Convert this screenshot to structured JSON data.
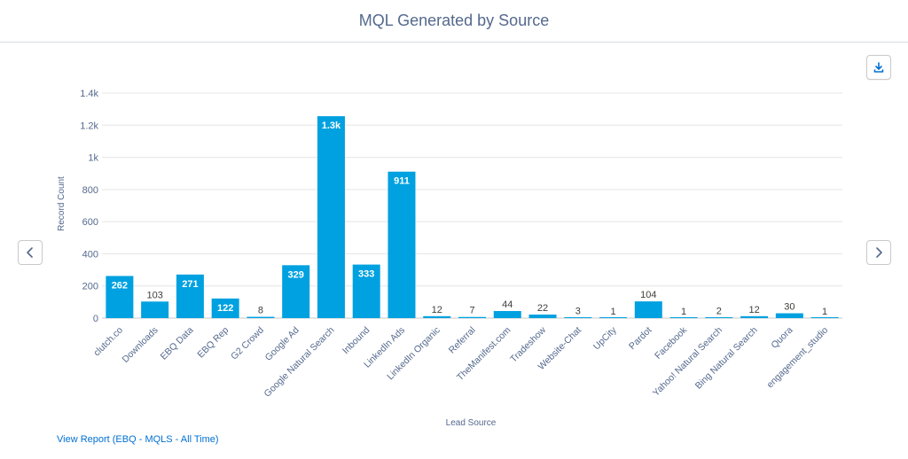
{
  "header": {
    "title": "MQL Generated by Source"
  },
  "footer": {
    "report_link": "View Report (EBQ - MQLS - All Time)"
  },
  "icons": {
    "download": "download-icon",
    "prev": "chevron-left-icon",
    "next": "chevron-right-icon"
  },
  "colors": {
    "bar": "#00a1e0",
    "grid": "#e5e5e5",
    "link": "#0070d2"
  },
  "chart_data": {
    "type": "bar",
    "xlabel": "Lead Source",
    "ylabel": "Record Count",
    "ylim": [
      0,
      1400
    ],
    "yticks": [
      0,
      200,
      400,
      600,
      800,
      1000,
      1200,
      1400
    ],
    "ytick_labels": [
      "0",
      "200",
      "400",
      "600",
      "800",
      "1k",
      "1.2k",
      "1.4k"
    ],
    "grid": true,
    "categories": [
      "clutch.co",
      "Downloads",
      "EBQ Data",
      "EBQ Rep",
      "G2 Crowd",
      "Google Ad",
      "Google Natural Search",
      "Inbound",
      "LinkedIn Ads",
      "LinkedIn Organic",
      "Referral",
      "TheManifest.com",
      "Tradeshow",
      "Website-Chat",
      "UpCity",
      "Pardot",
      "Facebook",
      "Yahoo! Natural Search",
      "Bing Natural Search",
      "Quora",
      "engagement_studio"
    ],
    "values": [
      262,
      103,
      271,
      122,
      8,
      329,
      1256,
      333,
      911,
      12,
      7,
      44,
      22,
      3,
      1,
      104,
      1,
      2,
      12,
      30,
      1
    ],
    "data_labels": [
      "262",
      "103",
      "271",
      "122",
      "8",
      "329",
      "1.3k",
      "333",
      "911",
      "12",
      "7",
      "44",
      "22",
      "3",
      "1",
      "104",
      "1",
      "2",
      "12",
      "30",
      "1"
    ]
  }
}
